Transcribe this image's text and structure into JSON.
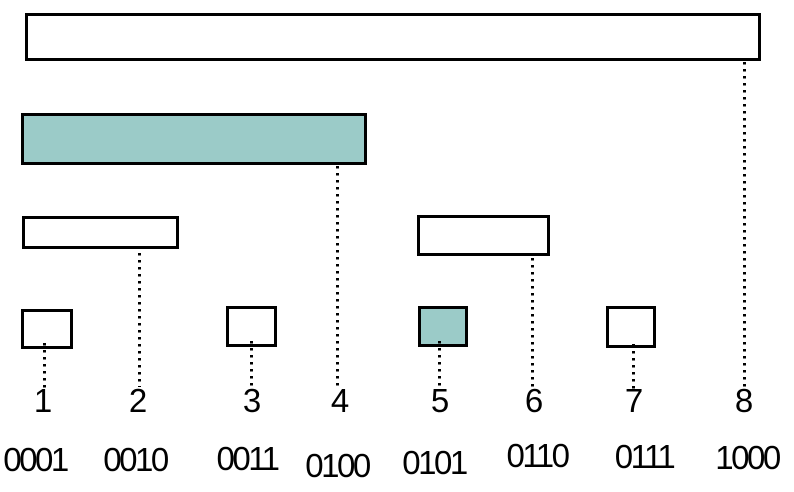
{
  "colors": {
    "highlight": "#9bcbc8",
    "box_fill": "#ffffff",
    "box_border": "#000000",
    "background": "#ffffff",
    "text": "#000000"
  },
  "tree": {
    "boxes": [
      {
        "name": "range-1-8",
        "covers": "1-8",
        "highlighted": false
      },
      {
        "name": "range-1-4",
        "covers": "1-4",
        "highlighted": true
      },
      {
        "name": "range-1-2",
        "covers": "1-2",
        "highlighted": false
      },
      {
        "name": "range-5-6",
        "covers": "5-6",
        "highlighted": false
      },
      {
        "name": "cell-1",
        "covers": "1",
        "highlighted": false
      },
      {
        "name": "cell-3",
        "covers": "3",
        "highlighted": false
      },
      {
        "name": "cell-5",
        "covers": "5",
        "highlighted": true
      },
      {
        "name": "cell-7",
        "covers": "7",
        "highlighted": false
      }
    ]
  },
  "labels": {
    "numbers": [
      "1",
      "2",
      "3",
      "4",
      "5",
      "6",
      "7",
      "8"
    ],
    "binaries": [
      "0001",
      "0010",
      "0011",
      "0100",
      "0101",
      "0110",
      "0111",
      "1000"
    ]
  }
}
